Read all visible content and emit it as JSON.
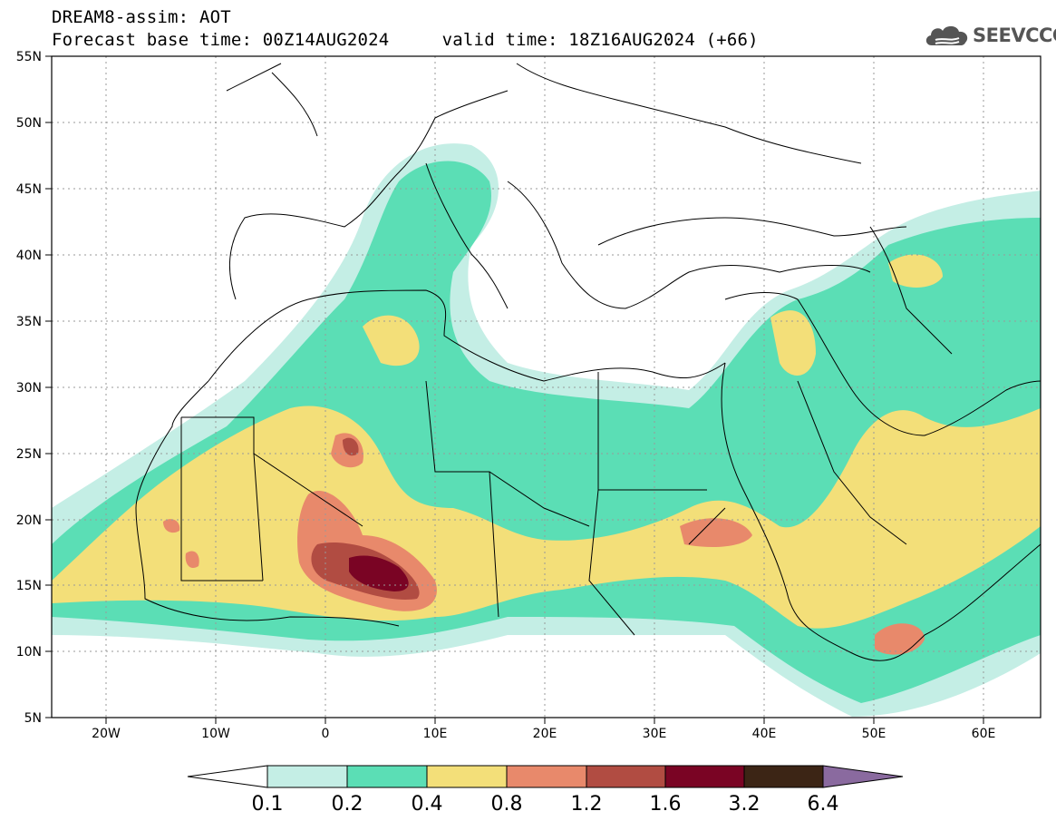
{
  "header": {
    "line1": "DREAM8-assim: AOT",
    "line2": "Forecast base time: 00Z14AUG2024     valid time: 18Z16AUG2024 (+66)"
  },
  "logo": {
    "text": "SEEVCCC",
    "icon": "cloud-icon",
    "color": "#555555"
  },
  "map": {
    "lon_range": [
      -25,
      65
    ],
    "lat_range": [
      5,
      55
    ],
    "lat_ticks": [
      "5N",
      "10N",
      "15N",
      "20N",
      "25N",
      "30N",
      "35N",
      "40N",
      "45N",
      "50N",
      "55N"
    ],
    "lon_ticks": [
      "20W",
      "10W",
      "0",
      "10E",
      "20E",
      "30E",
      "40E",
      "50E",
      "60E"
    ],
    "grid": true
  },
  "legend": {
    "labels": [
      "0.1",
      "0.2",
      "0.4",
      "0.8",
      "1.2",
      "1.6",
      "3.2",
      "6.4"
    ],
    "colors": [
      "#ffffff",
      "#c4eee5",
      "#5bdeb5",
      "#f3df79",
      "#e8896b",
      "#b14c42",
      "#7a0424",
      "#3c2515",
      "#8a6a9f"
    ]
  }
}
